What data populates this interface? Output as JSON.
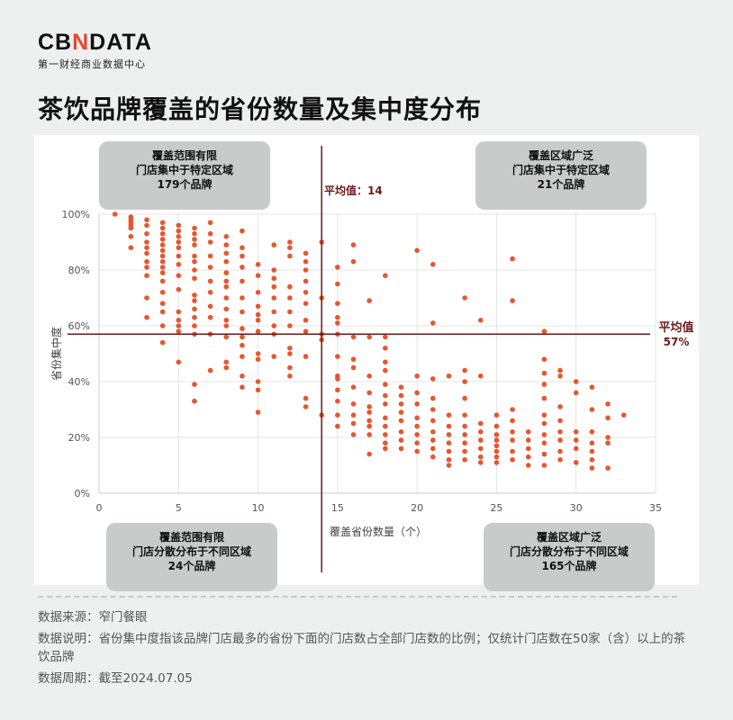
{
  "logo": {
    "prefix": "CB",
    "highlight": "N",
    "suffix": "DATA",
    "subtitle": "第一财经商业数据中心"
  },
  "title": "茶饮品牌覆盖的省份数量及集中度分布",
  "callouts": {
    "top_left": [
      "覆盖范围有限",
      "门店集中于特定区域",
      "179个品牌"
    ],
    "top_right": [
      "覆盖区域广泛",
      "门店集中于特定区域",
      "21个品牌"
    ],
    "bottom_left": [
      "覆盖范围有限",
      "门店分散分布于不同区域",
      "24个品牌"
    ],
    "bottom_right": [
      "覆盖区域广泛",
      "门店分散分布于不同区域",
      "165个品牌"
    ]
  },
  "avg_x_label": "平均值：14",
  "avg_y_label": [
    "平均值",
    "57%"
  ],
  "notes": {
    "source": "数据来源：窄门餐眼",
    "explanation": "数据说明：省份集中度指该品牌门店最多的省份下面的门店数占全部门店数的比例；仅统计门店数在50家（含）以上的茶饮品牌",
    "period": "数据周期：截至2024.07.05"
  },
  "colors": {
    "point": "#e8552f",
    "avg_line": "#6b1a1a",
    "grid": "#e4e4e4",
    "callout": "#c9cbca"
  },
  "chart_data": {
    "type": "scatter",
    "title": "",
    "xlabel": "覆盖省份数量（个）",
    "ylabel": "省份集中度",
    "xlim": [
      0,
      35
    ],
    "ylim": [
      0,
      100
    ],
    "x_ticks": [
      0,
      5,
      10,
      15,
      20,
      25,
      30,
      35
    ],
    "y_ticks": [
      0,
      20,
      40,
      60,
      80,
      100
    ],
    "y_tick_labels": [
      "0%",
      "20%",
      "40%",
      "60%",
      "80%",
      "100%"
    ],
    "grid": true,
    "avg_x": 14,
    "avg_y": 57,
    "points": [
      [
        1,
        100
      ],
      [
        2,
        99
      ],
      [
        2,
        98
      ],
      [
        2,
        97
      ],
      [
        2,
        96
      ],
      [
        2,
        95
      ],
      [
        2,
        92
      ],
      [
        2,
        88
      ],
      [
        3,
        98
      ],
      [
        3,
        96
      ],
      [
        3,
        93
      ],
      [
        3,
        90
      ],
      [
        3,
        88
      ],
      [
        3,
        86
      ],
      [
        3,
        83
      ],
      [
        3,
        81
      ],
      [
        3,
        78
      ],
      [
        3,
        70
      ],
      [
        3,
        63
      ],
      [
        4,
        97
      ],
      [
        4,
        95
      ],
      [
        4,
        93
      ],
      [
        4,
        91
      ],
      [
        4,
        89
      ],
      [
        4,
        87
      ],
      [
        4,
        85
      ],
      [
        4,
        83
      ],
      [
        4,
        81
      ],
      [
        4,
        79
      ],
      [
        4,
        76
      ],
      [
        4,
        72
      ],
      [
        4,
        68
      ],
      [
        4,
        65
      ],
      [
        4,
        60
      ],
      [
        4,
        54
      ],
      [
        5,
        96
      ],
      [
        5,
        94
      ],
      [
        5,
        92
      ],
      [
        5,
        90
      ],
      [
        5,
        88
      ],
      [
        5,
        85
      ],
      [
        5,
        82
      ],
      [
        5,
        78
      ],
      [
        5,
        73
      ],
      [
        5,
        65
      ],
      [
        5,
        62
      ],
      [
        5,
        60
      ],
      [
        5,
        58
      ],
      [
        5,
        47
      ],
      [
        6,
        95
      ],
      [
        6,
        93
      ],
      [
        6,
        91
      ],
      [
        6,
        89
      ],
      [
        6,
        85
      ],
      [
        6,
        83
      ],
      [
        6,
        80
      ],
      [
        6,
        77
      ],
      [
        6,
        71
      ],
      [
        6,
        69
      ],
      [
        6,
        66
      ],
      [
        6,
        63
      ],
      [
        6,
        60
      ],
      [
        6,
        57
      ],
      [
        6,
        39
      ],
      [
        6,
        33
      ],
      [
        7,
        97
      ],
      [
        7,
        93
      ],
      [
        7,
        90
      ],
      [
        7,
        85
      ],
      [
        7,
        81
      ],
      [
        7,
        76
      ],
      [
        7,
        72
      ],
      [
        7,
        67
      ],
      [
        7,
        63
      ],
      [
        7,
        57
      ],
      [
        7,
        44
      ],
      [
        8,
        92
      ],
      [
        8,
        89
      ],
      [
        8,
        86
      ],
      [
        8,
        83
      ],
      [
        8,
        79
      ],
      [
        8,
        76
      ],
      [
        8,
        74
      ],
      [
        8,
        70
      ],
      [
        8,
        66
      ],
      [
        8,
        62
      ],
      [
        8,
        60
      ],
      [
        8,
        56
      ],
      [
        8,
        47
      ],
      [
        8,
        45
      ],
      [
        9,
        94
      ],
      [
        9,
        88
      ],
      [
        9,
        85
      ],
      [
        9,
        81
      ],
      [
        9,
        76
      ],
      [
        9,
        70
      ],
      [
        9,
        65
      ],
      [
        9,
        59
      ],
      [
        9,
        56
      ],
      [
        9,
        53
      ],
      [
        9,
        49
      ],
      [
        9,
        42
      ],
      [
        9,
        38
      ],
      [
        10,
        82
      ],
      [
        10,
        78
      ],
      [
        10,
        72
      ],
      [
        10,
        67
      ],
      [
        10,
        64
      ],
      [
        10,
        62
      ],
      [
        10,
        58
      ],
      [
        10,
        50
      ],
      [
        10,
        48
      ],
      [
        10,
        40
      ],
      [
        10,
        37
      ],
      [
        10,
        29
      ],
      [
        11,
        89
      ],
      [
        11,
        80
      ],
      [
        11,
        77
      ],
      [
        11,
        74
      ],
      [
        11,
        70
      ],
      [
        11,
        65
      ],
      [
        11,
        60
      ],
      [
        11,
        57
      ],
      [
        11,
        49
      ],
      [
        12,
        90
      ],
      [
        12,
        88
      ],
      [
        12,
        85
      ],
      [
        12,
        74
      ],
      [
        12,
        70
      ],
      [
        12,
        65
      ],
      [
        12,
        60
      ],
      [
        12,
        52
      ],
      [
        12,
        50
      ],
      [
        12,
        45
      ],
      [
        12,
        42
      ],
      [
        13,
        86
      ],
      [
        13,
        83
      ],
      [
        13,
        80
      ],
      [
        13,
        76
      ],
      [
        13,
        72
      ],
      [
        13,
        68
      ],
      [
        13,
        62
      ],
      [
        13,
        58
      ],
      [
        13,
        49
      ],
      [
        13,
        34
      ],
      [
        13,
        31
      ],
      [
        14,
        90
      ],
      [
        14,
        70
      ],
      [
        14,
        57
      ],
      [
        14,
        55
      ],
      [
        14,
        28
      ],
      [
        15,
        81
      ],
      [
        15,
        75
      ],
      [
        15,
        68
      ],
      [
        15,
        63
      ],
      [
        15,
        61
      ],
      [
        15,
        57
      ],
      [
        15,
        49
      ],
      [
        15,
        42
      ],
      [
        15,
        41
      ],
      [
        15,
        37
      ],
      [
        15,
        33
      ],
      [
        15,
        28
      ],
      [
        15,
        24
      ],
      [
        16,
        89
      ],
      [
        16,
        83
      ],
      [
        16,
        56
      ],
      [
        16,
        48
      ],
      [
        16,
        45
      ],
      [
        16,
        38
      ],
      [
        16,
        32
      ],
      [
        16,
        28
      ],
      [
        16,
        25
      ],
      [
        16,
        21
      ],
      [
        17,
        69
      ],
      [
        17,
        56
      ],
      [
        17,
        42
      ],
      [
        17,
        36
      ],
      [
        17,
        31
      ],
      [
        17,
        29
      ],
      [
        17,
        26
      ],
      [
        17,
        24
      ],
      [
        17,
        21
      ],
      [
        17,
        14
      ],
      [
        18,
        78
      ],
      [
        18,
        56
      ],
      [
        18,
        52
      ],
      [
        18,
        47
      ],
      [
        18,
        44
      ],
      [
        18,
        39
      ],
      [
        18,
        35
      ],
      [
        18,
        32
      ],
      [
        18,
        27
      ],
      [
        18,
        24
      ],
      [
        18,
        21
      ],
      [
        18,
        18
      ],
      [
        18,
        16
      ],
      [
        19,
        38
      ],
      [
        19,
        35
      ],
      [
        19,
        32
      ],
      [
        19,
        29
      ],
      [
        19,
        26
      ],
      [
        19,
        22
      ],
      [
        19,
        19
      ],
      [
        19,
        16
      ],
      [
        20,
        87
      ],
      [
        20,
        42
      ],
      [
        20,
        36
      ],
      [
        20,
        32
      ],
      [
        20,
        27
      ],
      [
        20,
        24
      ],
      [
        20,
        21
      ],
      [
        20,
        18
      ],
      [
        20,
        15
      ],
      [
        21,
        82
      ],
      [
        21,
        61
      ],
      [
        21,
        41
      ],
      [
        21,
        34
      ],
      [
        21,
        30
      ],
      [
        21,
        26
      ],
      [
        21,
        22
      ],
      [
        21,
        19
      ],
      [
        21,
        16
      ],
      [
        21,
        13
      ],
      [
        22,
        42
      ],
      [
        22,
        28
      ],
      [
        22,
        24
      ],
      [
        22,
        21
      ],
      [
        22,
        18
      ],
      [
        22,
        15
      ],
      [
        22,
        12
      ],
      [
        22,
        10
      ],
      [
        23,
        70
      ],
      [
        23,
        44
      ],
      [
        23,
        40
      ],
      [
        23,
        34
      ],
      [
        23,
        28
      ],
      [
        23,
        24
      ],
      [
        23,
        21
      ],
      [
        23,
        18
      ],
      [
        23,
        15
      ],
      [
        23,
        12
      ],
      [
        24,
        62
      ],
      [
        24,
        42
      ],
      [
        24,
        25
      ],
      [
        24,
        22
      ],
      [
        24,
        19
      ],
      [
        24,
        16
      ],
      [
        24,
        13
      ],
      [
        24,
        11
      ],
      [
        25,
        28
      ],
      [
        25,
        24
      ],
      [
        25,
        21
      ],
      [
        25,
        19
      ],
      [
        25,
        17
      ],
      [
        25,
        15
      ],
      [
        25,
        13
      ],
      [
        25,
        11
      ],
      [
        26,
        84
      ],
      [
        26,
        69
      ],
      [
        26,
        30
      ],
      [
        26,
        26
      ],
      [
        26,
        22
      ],
      [
        26,
        19
      ],
      [
        26,
        15
      ],
      [
        26,
        12
      ],
      [
        27,
        22
      ],
      [
        27,
        19
      ],
      [
        27,
        16
      ],
      [
        27,
        13
      ],
      [
        27,
        10
      ],
      [
        28,
        58
      ],
      [
        28,
        48
      ],
      [
        28,
        43
      ],
      [
        28,
        39
      ],
      [
        28,
        34
      ],
      [
        28,
        28
      ],
      [
        28,
        25
      ],
      [
        28,
        21
      ],
      [
        28,
        18
      ],
      [
        28,
        14
      ],
      [
        28,
        10
      ],
      [
        29,
        44
      ],
      [
        29,
        42
      ],
      [
        29,
        31
      ],
      [
        29,
        26
      ],
      [
        29,
        22
      ],
      [
        29,
        19
      ],
      [
        29,
        15
      ],
      [
        29,
        12
      ],
      [
        30,
        40
      ],
      [
        30,
        36
      ],
      [
        30,
        22
      ],
      [
        30,
        19
      ],
      [
        30,
        16
      ],
      [
        30,
        11
      ],
      [
        31,
        38
      ],
      [
        31,
        30
      ],
      [
        31,
        22
      ],
      [
        31,
        18
      ],
      [
        31,
        15
      ],
      [
        31,
        12
      ],
      [
        31,
        9
      ],
      [
        32,
        32
      ],
      [
        32,
        27
      ],
      [
        32,
        20
      ],
      [
        32,
        18
      ],
      [
        32,
        9
      ],
      [
        33,
        28
      ]
    ]
  }
}
